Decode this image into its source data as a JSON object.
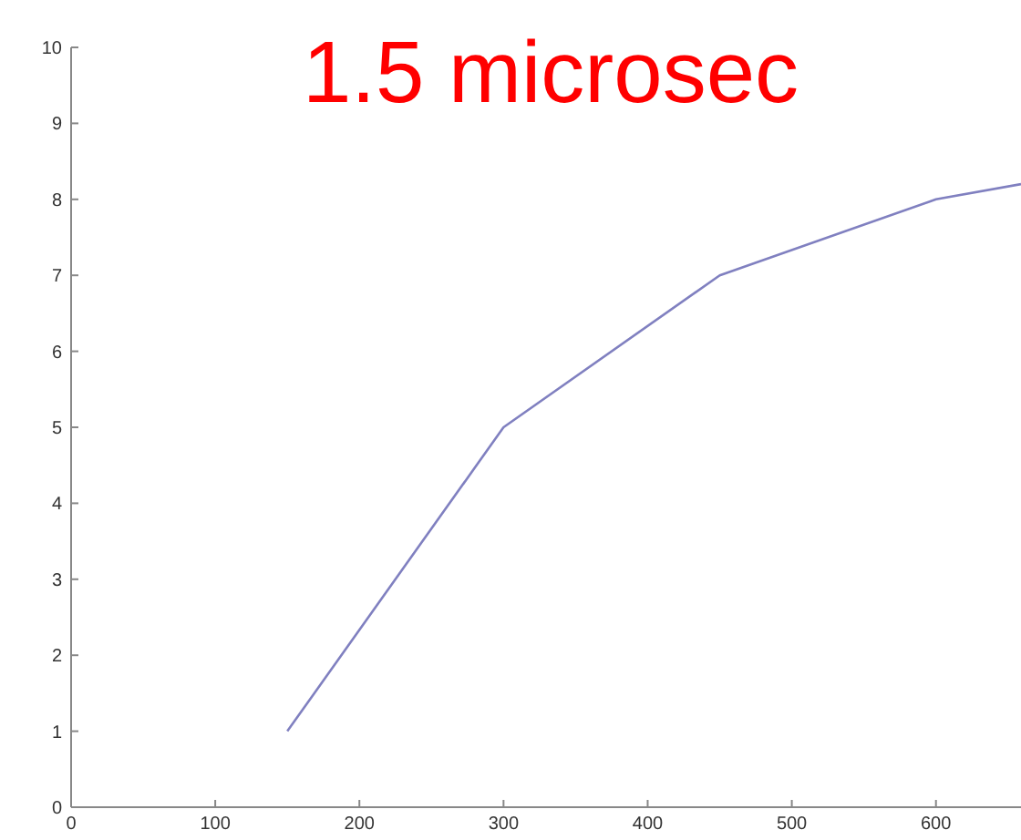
{
  "chart_data": {
    "type": "line",
    "title": "1.5 microsec",
    "x": [
      150,
      300,
      450,
      600,
      659
    ],
    "series": [
      {
        "color": "#8080c0",
        "values": [
          1,
          5,
          7,
          8,
          8.2
        ]
      }
    ],
    "xlim": [
      0,
      659
    ],
    "xticks": [
      0,
      100,
      200,
      300,
      400,
      500,
      600
    ],
    "ylim": [
      0,
      10
    ],
    "yticks": [
      0,
      1,
      2,
      3,
      4,
      5,
      6,
      7,
      8,
      9,
      10
    ],
    "grid": false
  }
}
